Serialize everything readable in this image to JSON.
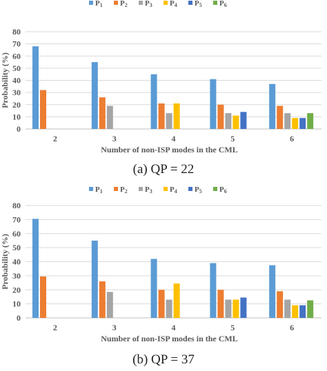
{
  "chart_data": [
    {
      "type": "bar",
      "caption": "(a)  QP = 22",
      "categories": [
        "2",
        "3",
        "4",
        "5",
        "6"
      ],
      "xlabel": "Number of non-ISP modes in the CML",
      "ylabel": "Probability (%)",
      "ylim": [
        0,
        80
      ],
      "yticks": [
        0,
        10,
        20,
        30,
        40,
        50,
        60,
        70,
        80
      ],
      "grid": true,
      "legend_position": "top-center",
      "series": [
        {
          "name": "P",
          "sub": "1",
          "color": "#5b9bd5",
          "values": [
            68,
            55,
            45,
            41,
            37
          ]
        },
        {
          "name": "P",
          "sub": "2",
          "color": "#ed7d31",
          "values": [
            32,
            26,
            21,
            20,
            19
          ]
        },
        {
          "name": "P",
          "sub": "3",
          "color": "#a5a5a5",
          "values": [
            null,
            19,
            13,
            13,
            13
          ]
        },
        {
          "name": "P",
          "sub": "4",
          "color": "#ffc000",
          "values": [
            null,
            null,
            21,
            11,
            9
          ]
        },
        {
          "name": "P",
          "sub": "5",
          "color": "#4472c4",
          "values": [
            null,
            null,
            null,
            14,
            9
          ]
        },
        {
          "name": "P",
          "sub": "6",
          "color": "#70ad47",
          "values": [
            null,
            null,
            null,
            null,
            13
          ]
        }
      ]
    },
    {
      "type": "bar",
      "caption": "(b)  QP = 37",
      "categories": [
        "2",
        "3",
        "4",
        "5",
        "6"
      ],
      "xlabel": "Number of non-ISP modes in the CML",
      "ylabel": "Probability (%)",
      "ylim": [
        0,
        80
      ],
      "yticks": [
        0,
        10,
        20,
        30,
        40,
        50,
        60,
        70,
        80
      ],
      "grid": true,
      "legend_position": "top-center",
      "series": [
        {
          "name": "P",
          "sub": "1",
          "color": "#5b9bd5",
          "values": [
            70.5,
            55,
            42,
            39,
            37.5
          ]
        },
        {
          "name": "P",
          "sub": "2",
          "color": "#ed7d31",
          "values": [
            29.5,
            26,
            20,
            20,
            19
          ]
        },
        {
          "name": "P",
          "sub": "3",
          "color": "#a5a5a5",
          "values": [
            null,
            18.5,
            13,
            13,
            13
          ]
        },
        {
          "name": "P",
          "sub": "4",
          "color": "#ffc000",
          "values": [
            null,
            null,
            24.5,
            13,
            9
          ]
        },
        {
          "name": "P",
          "sub": "5",
          "color": "#4472c4",
          "values": [
            null,
            null,
            null,
            14.5,
            9
          ]
        },
        {
          "name": "P",
          "sub": "6",
          "color": "#70ad47",
          "values": [
            null,
            null,
            null,
            null,
            12.5
          ]
        }
      ]
    }
  ]
}
